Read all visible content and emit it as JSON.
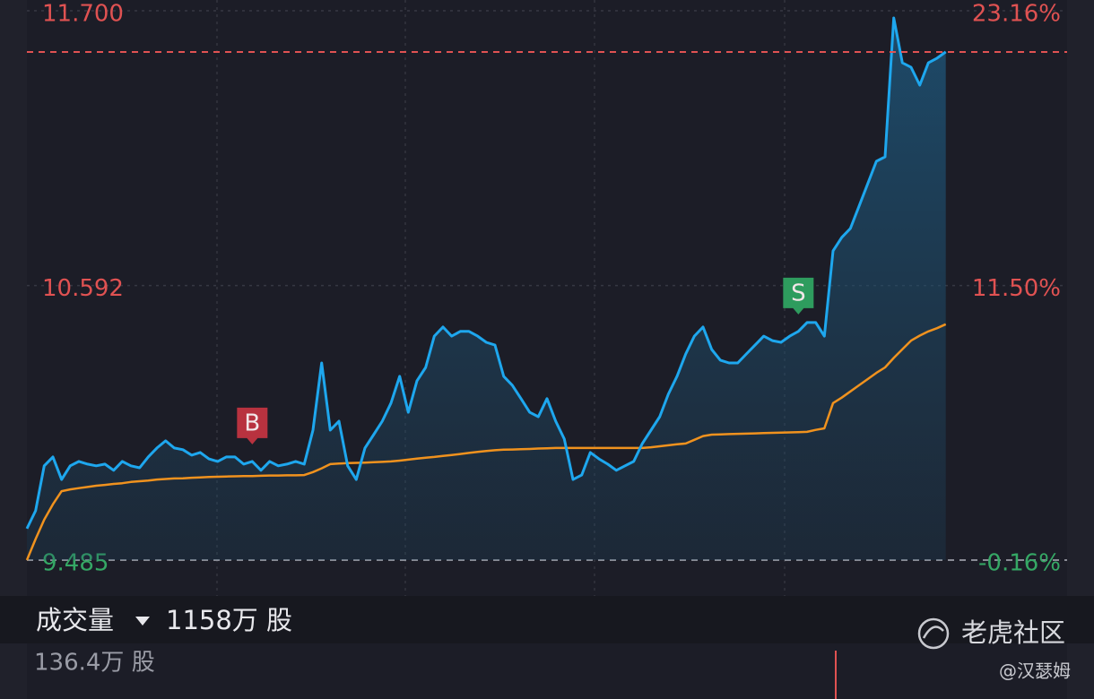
{
  "chart_data": {
    "type": "line",
    "up_color": "#e05252",
    "down_color": "#35a865",
    "x": [
      0,
      2,
      4,
      6,
      8,
      10,
      12,
      14,
      16,
      18,
      20,
      22,
      24,
      26,
      28,
      30,
      32,
      34,
      36,
      38,
      40,
      42,
      44,
      46,
      48,
      50,
      52,
      54,
      56,
      58,
      60,
      62,
      64,
      66,
      68,
      70,
      72,
      74,
      76,
      78,
      80,
      82,
      84,
      86,
      88,
      90,
      92,
      94,
      96,
      98,
      100,
      102,
      104,
      106,
      108,
      110,
      112,
      114,
      116,
      118,
      120,
      122,
      124,
      126,
      128,
      130,
      132,
      134,
      136,
      138,
      140,
      142,
      144,
      146,
      148,
      150,
      152,
      154,
      156,
      158,
      160,
      162,
      164,
      166,
      168,
      170,
      172,
      174,
      176,
      178,
      180,
      182,
      184,
      186,
      188,
      190,
      192,
      194,
      196,
      198,
      200,
      202,
      204,
      206,
      208,
      210,
      212
    ],
    "xlim": [
      0,
      240
    ],
    "ylim": [
      9.485,
      11.7
    ],
    "yticks": [
      {
        "value": 11.7,
        "label": "11.700"
      },
      {
        "value": 10.592,
        "label": "10.592"
      },
      {
        "value": 9.485,
        "label": "9.485"
      }
    ],
    "y2lim": [
      -0.16,
      23.16
    ],
    "y2ticks": [
      {
        "value": 23.16,
        "label": "23.16%"
      },
      {
        "value": 11.5,
        "label": "11.50%"
      },
      {
        "value": -0.16,
        "label": "-0.16%"
      }
    ],
    "series": [
      {
        "color": "#1ea7ee",
        "values": [
          9.612,
          9.684,
          9.865,
          9.901,
          9.81,
          9.865,
          9.883,
          9.872,
          9.865,
          9.872,
          9.847,
          9.883,
          9.865,
          9.857,
          9.901,
          9.937,
          9.966,
          9.937,
          9.93,
          9.908,
          9.919,
          9.893,
          9.883,
          9.901,
          9.901,
          9.872,
          9.883,
          9.847,
          9.883,
          9.865,
          9.872,
          9.883,
          9.872,
          10.009,
          10.28,
          10.009,
          10.045,
          9.865,
          9.81,
          9.937,
          9.991,
          10.045,
          10.118,
          10.226,
          10.081,
          10.208,
          10.262,
          10.388,
          10.425,
          10.388,
          10.407,
          10.407,
          10.388,
          10.363,
          10.352,
          10.226,
          10.19,
          10.136,
          10.081,
          10.063,
          10.136,
          10.045,
          9.973,
          9.81,
          9.828,
          9.919,
          9.893,
          9.872,
          9.847,
          9.865,
          9.883,
          9.955,
          10.009,
          10.063,
          10.154,
          10.226,
          10.316,
          10.388,
          10.425,
          10.334,
          10.291,
          10.28,
          10.28,
          10.316,
          10.352,
          10.388,
          10.37,
          10.363,
          10.388,
          10.407,
          10.443,
          10.443,
          10.388,
          10.732,
          10.786,
          10.822,
          10.912,
          11.003,
          11.093,
          11.111,
          11.671,
          11.49,
          11.472,
          11.4,
          11.49,
          11.509,
          11.534
        ]
      },
      {
        "color": "#f0921e",
        "values": [
          9.485,
          9.57,
          9.648,
          9.71,
          9.763,
          9.77,
          9.775,
          9.78,
          9.785,
          9.788,
          9.792,
          9.795,
          9.8,
          9.803,
          9.806,
          9.81,
          9.812,
          9.814,
          9.815,
          9.817,
          9.818,
          9.82,
          9.821,
          9.822,
          9.823,
          9.824,
          9.824,
          9.825,
          9.826,
          9.826,
          9.827,
          9.827,
          9.828,
          9.84,
          9.855,
          9.872,
          9.874,
          9.876,
          9.877,
          9.878,
          9.88,
          9.881,
          9.883,
          9.886,
          9.89,
          9.894,
          9.898,
          9.901,
          9.905,
          9.909,
          9.913,
          9.917,
          9.921,
          9.925,
          9.928,
          9.93,
          9.931,
          9.932,
          9.933,
          9.935,
          9.936,
          9.937,
          9.937,
          9.937,
          9.937,
          9.937,
          9.937,
          9.937,
          9.937,
          9.937,
          9.937,
          9.937,
          9.94,
          9.944,
          9.948,
          9.952,
          9.955,
          9.97,
          9.985,
          9.991,
          9.992,
          9.993,
          9.994,
          9.995,
          9.996,
          9.997,
          9.998,
          9.999,
          10.0,
          10.001,
          10.002,
          10.01,
          10.016,
          10.118,
          10.14,
          10.165,
          10.19,
          10.215,
          10.24,
          10.262,
          10.3,
          10.335,
          10.37,
          10.39,
          10.407,
          10.42,
          10.436
        ]
      }
    ],
    "markers": [
      {
        "text": "B",
        "x": 52,
        "color": "#b8323f"
      },
      {
        "text": "S",
        "x": 178,
        "color": "#2e9c5e"
      }
    ],
    "volume_title": "成交量",
    "volume_value": "1158万 股",
    "volume_scale": "136.4万 股",
    "watermark": "老虎社区",
    "author": "@汉瑟姆"
  }
}
